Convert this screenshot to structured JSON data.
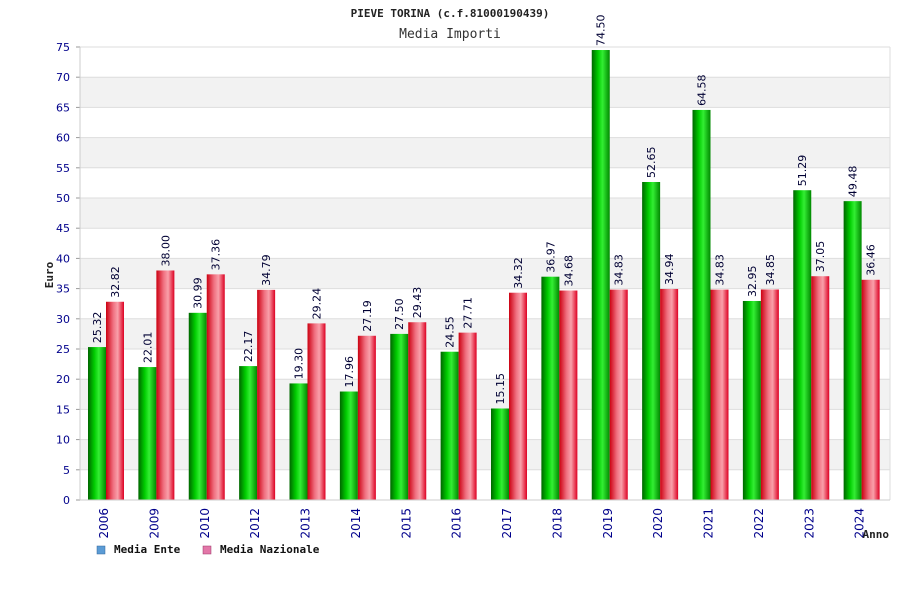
{
  "chart_data": {
    "type": "bar",
    "title": "PIEVE TORINA (c.f.81000190439)",
    "subtitle": "Media Importi",
    "xlabel": "Anno",
    "ylabel": "Euro",
    "ylim": [
      0,
      75
    ],
    "ytick_step": 5,
    "grid": true,
    "legend_position": "bottom-left",
    "categories": [
      "2006",
      "2009",
      "2010",
      "2012",
      "2013",
      "2014",
      "2015",
      "2016",
      "2017",
      "2018",
      "2019",
      "2020",
      "2021",
      "2022",
      "2023",
      "2024"
    ],
    "series": [
      {
        "name": "Media Ente",
        "color": "#00bb00",
        "legend_color": "#5b9bd5",
        "values": [
          25.32,
          22.01,
          30.99,
          22.17,
          19.3,
          17.96,
          27.5,
          24.55,
          15.15,
          36.97,
          74.5,
          52.65,
          64.58,
          32.95,
          51.29,
          49.48
        ],
        "labels": [
          "25.32",
          "22.01",
          "30.99",
          "22.17",
          "19.30",
          "17.96",
          "27.50",
          "24.55",
          "15.15",
          "36.97",
          "74.50",
          "52.65",
          "64.58",
          "32.95",
          "51.29",
          "49.48"
        ]
      },
      {
        "name": "Media Nazionale",
        "color": "#ee1122",
        "legend_color": "#e377a8",
        "values": [
          32.82,
          38.0,
          37.36,
          34.79,
          29.24,
          27.19,
          29.43,
          27.71,
          34.32,
          34.68,
          34.83,
          34.94,
          34.83,
          34.85,
          37.05,
          36.46
        ],
        "labels": [
          "32.82",
          "38.00",
          "37.36",
          "34.79",
          "29.24",
          "27.19",
          "29.43",
          "27.71",
          "34.32",
          "34.68",
          "34.83",
          "34.94",
          "34.83",
          "34.85",
          "37.05",
          "36.46"
        ]
      }
    ]
  }
}
